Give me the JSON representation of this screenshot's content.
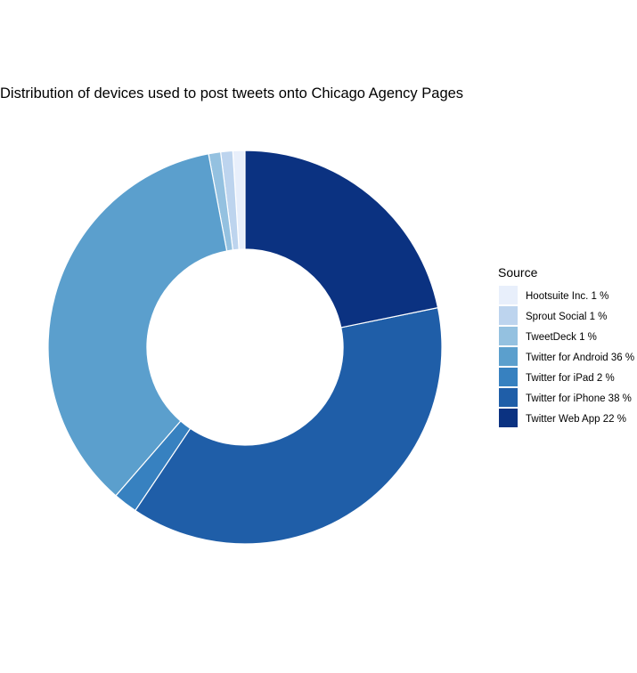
{
  "chart_data": {
    "type": "pie",
    "variant": "donut",
    "title": "Distribution of devices used to post tweets onto Chicago Agency Pages",
    "legend": {
      "title": "Source",
      "position": "right"
    },
    "slices": [
      {
        "label": "Hootsuite Inc. 1 %",
        "value": 1,
        "color": "#e8effb"
      },
      {
        "label": "Sprout Social 1 %",
        "value": 1,
        "color": "#bdd4ee"
      },
      {
        "label": "TweetDeck 1 %",
        "value": 1,
        "color": "#94c1e0"
      },
      {
        "label": "Twitter for Android 36 %",
        "value": 36,
        "color": "#5b9fcd"
      },
      {
        "label": "Twitter for iPad 2 %",
        "value": 2,
        "color": "#3781c0"
      },
      {
        "label": "Twitter for iPhone 38 %",
        "value": 38,
        "color": "#1f5ea8"
      },
      {
        "label": "Twitter Web App 22 %",
        "value": 22,
        "color": "#0b3281"
      }
    ]
  }
}
